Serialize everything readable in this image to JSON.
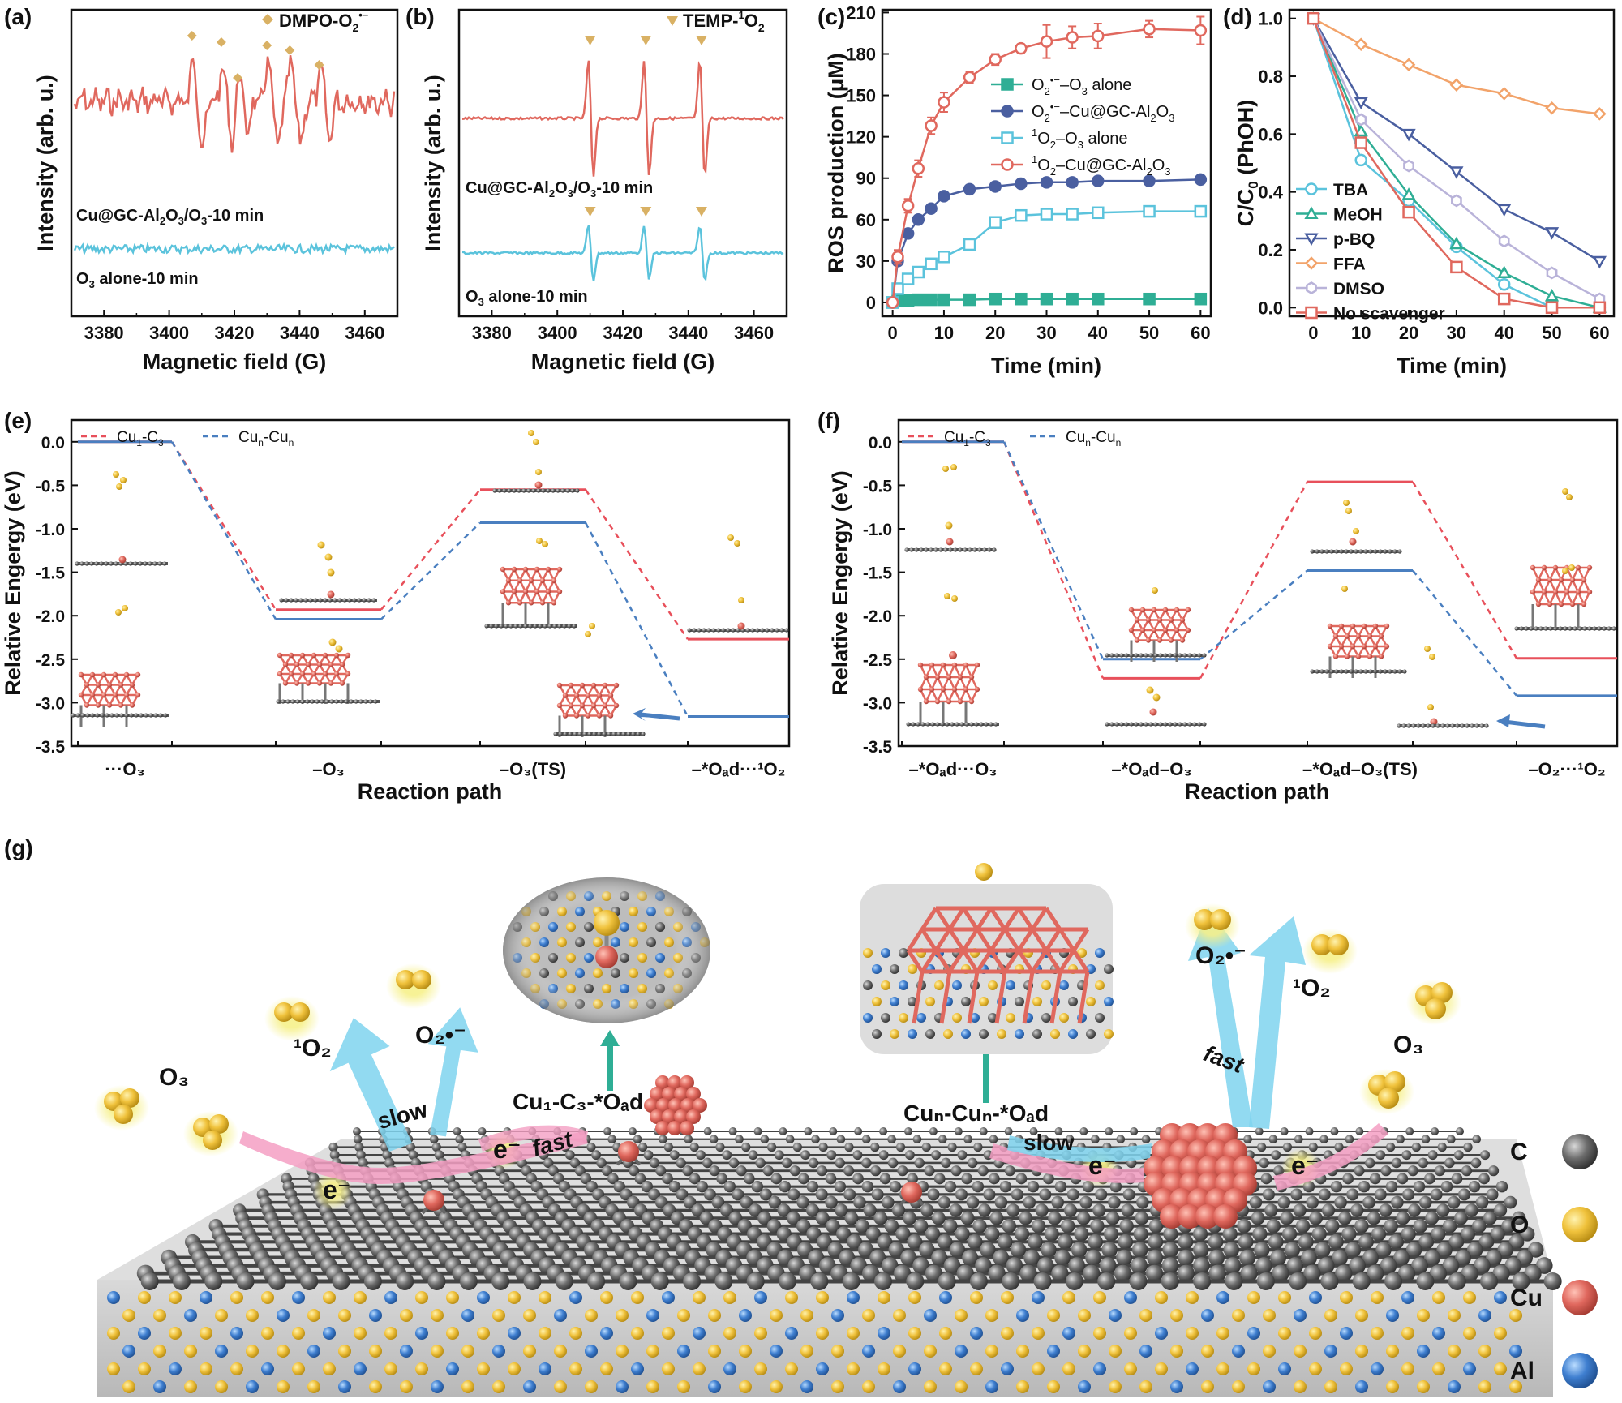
{
  "panel_labels": {
    "a": "(a)",
    "b": "(b)",
    "c": "(c)",
    "d": "(d)",
    "e": "(e)",
    "f": "(f)",
    "g": "(g)"
  },
  "colors": {
    "red": "#e0685e",
    "cyan": "#5bc3dc",
    "navy": "#4a5fa0",
    "teal": "#2fae95",
    "orange": "#f2a36a",
    "lavender": "#b9b3d9",
    "marker_tan": "#d9b164",
    "dft_red": "#e8505b",
    "dft_blue": "#4a7fc0",
    "cu": "#e0685e",
    "o": "#f0c23c",
    "c": "#6d6d6d",
    "al": "#3f7fd0",
    "glow": "#7fd3ef",
    "pink": "#f49fc3"
  },
  "chart_data": [
    {
      "id": "a",
      "type": "line",
      "title": "",
      "xlabel": "Magnetic field (G)",
      "ylabel": "Intensity (arb. u.)",
      "xlim": [
        3370,
        3470
      ],
      "xticks": [
        3380,
        3400,
        3420,
        3440,
        3460
      ],
      "legend": "DMPO-O₂•⁻",
      "series": [
        {
          "name": "Cu@GC-Al₂O₃/O₃-10 min",
          "color": "#e0685e",
          "note": "EPR spectrum with DMPO-O2 adduct peaks"
        },
        {
          "name": "O₃ alone-10 min",
          "color": "#5bc3dc",
          "note": "flat noise baseline"
        }
      ],
      "marker_positions_G": [
        3407,
        3416,
        3421,
        3430,
        3437,
        3446
      ]
    },
    {
      "id": "b",
      "type": "line",
      "title": "",
      "xlabel": "Magnetic field (G)",
      "ylabel": "Intensity (arb. u.)",
      "xlim": [
        3370,
        3470
      ],
      "xticks": [
        3380,
        3400,
        3420,
        3440,
        3460
      ],
      "legend": "TEMP-¹O₂",
      "series": [
        {
          "name": "Cu@GC-Al₂O₃/O₃-10 min",
          "color": "#e0685e",
          "note": "1:1:1 triplet, large"
        },
        {
          "name": "O₃ alone-10 min",
          "color": "#5bc3dc",
          "note": "1:1:1 triplet, small"
        }
      ],
      "peak_positions_G": [
        3410,
        3427,
        3444
      ]
    },
    {
      "id": "c",
      "type": "line",
      "title": "",
      "xlabel": "Time (min)",
      "ylabel": "ROS production (μM)",
      "xlim": [
        -2,
        62
      ],
      "ylim": [
        -10,
        212
      ],
      "xticks": [
        0,
        10,
        20,
        30,
        40,
        50,
        60
      ],
      "yticks": [
        0,
        30,
        60,
        90,
        120,
        150,
        180,
        210
      ],
      "x": [
        0,
        1,
        3,
        5,
        7.5,
        10,
        15,
        20,
        25,
        30,
        35,
        40,
        50,
        60
      ],
      "series": [
        {
          "name": "O₂•⁻–O₃ alone",
          "color": "#2fae95",
          "marker": "filled-square",
          "values": [
            0,
            1,
            1.5,
            2,
            2,
            2,
            2,
            2.5,
            2.5,
            2.5,
            2.5,
            2.5,
            2.5,
            2.5
          ]
        },
        {
          "name": "O₂•⁻–Cu@GC-Al₂O₃",
          "color": "#4a5fa0",
          "marker": "filled-circle",
          "values": [
            0,
            30,
            50,
            60,
            68,
            77,
            82,
            84,
            86,
            87,
            87,
            88,
            88,
            89
          ]
        },
        {
          "name": "¹O₂–O₃ alone",
          "color": "#5bc3dc",
          "marker": "open-square",
          "values": [
            0,
            10,
            17,
            22,
            28,
            33,
            42,
            58,
            63,
            64,
            64,
            65,
            66,
            66
          ]
        },
        {
          "name": "¹O₂–Cu@GC-Al₂O₃",
          "color": "#e0685e",
          "marker": "open-circle",
          "values": [
            0,
            33,
            70,
            97,
            128,
            145,
            163,
            176,
            184,
            189,
            192,
            193,
            198,
            197
          ],
          "errors": [
            0,
            5,
            5,
            6,
            6,
            7,
            4,
            4,
            3,
            12,
            8,
            9,
            6,
            10
          ]
        }
      ]
    },
    {
      "id": "d",
      "type": "line",
      "title": "",
      "xlabel": "Time (min)",
      "ylabel": "C/C₀ (PhOH)",
      "xlim": [
        -5,
        63
      ],
      "ylim": [
        -0.03,
        1.03
      ],
      "xticks": [
        0,
        10,
        20,
        30,
        40,
        50,
        60
      ],
      "yticks": [
        0.0,
        0.2,
        0.4,
        0.6,
        0.8,
        1.0
      ],
      "x": [
        0,
        10,
        20,
        30,
        40,
        50,
        60
      ],
      "series": [
        {
          "name": "TBA",
          "color": "#5bc3dc",
          "marker": "open-circle",
          "values": [
            1.0,
            0.51,
            0.37,
            0.21,
            0.08,
            0.0,
            0.0
          ]
        },
        {
          "name": "MeOH",
          "color": "#2fae95",
          "marker": "open-triangle",
          "values": [
            1.0,
            0.61,
            0.39,
            0.22,
            0.12,
            0.04,
            0.0
          ]
        },
        {
          "name": "p-BQ",
          "color": "#4a5fa0",
          "marker": "open-down-triangle",
          "values": [
            1.0,
            0.71,
            0.6,
            0.47,
            0.34,
            0.26,
            0.16
          ]
        },
        {
          "name": "FFA",
          "color": "#f2a36a",
          "marker": "open-diamond",
          "values": [
            1.0,
            0.91,
            0.84,
            0.77,
            0.74,
            0.69,
            0.67
          ]
        },
        {
          "name": "DMSO",
          "color": "#b9b3d9",
          "marker": "open-hexagon",
          "values": [
            1.0,
            0.65,
            0.49,
            0.37,
            0.23,
            0.12,
            0.03
          ]
        },
        {
          "name": "No scavenger",
          "color": "#e0685e",
          "marker": "open-square",
          "values": [
            1.0,
            0.57,
            0.33,
            0.14,
            0.03,
            0.0,
            0.0
          ]
        }
      ]
    },
    {
      "id": "e",
      "type": "line",
      "subtype": "energy-profile",
      "xlabel": "Reaction path",
      "ylabel": "Relative Engergy (eV)",
      "ylim": [
        -3.5,
        0.25
      ],
      "yticks": [
        0.0,
        -0.5,
        -1.0,
        -1.5,
        -2.0,
        -2.5,
        -3.0,
        -3.5
      ],
      "states": [
        "···O₃",
        "–O₃",
        "–O₃(TS)",
        "–*Oₐd···¹O₂"
      ],
      "series": [
        {
          "name": "Cu₁-C₃",
          "color": "#e8505b",
          "values": [
            0.0,
            -1.93,
            -0.55,
            -2.27
          ]
        },
        {
          "name": "Cuₙ-Cuₙ",
          "color": "#4a7fc0",
          "values": [
            0.0,
            -2.04,
            -0.93,
            -3.16
          ]
        }
      ]
    },
    {
      "id": "f",
      "type": "line",
      "subtype": "energy-profile",
      "xlabel": "Reaction path",
      "ylabel": "Relative Engergy (eV)",
      "ylim": [
        -3.5,
        0.25
      ],
      "yticks": [
        0.0,
        -0.5,
        -1.0,
        -1.5,
        -2.0,
        -2.5,
        -3.0,
        -3.5
      ],
      "states": [
        "–*Oₐd···O₃",
        "–*Oₐd–O₃",
        "–*Oₐd–O₃(TS)",
        "–O₂···¹O₂"
      ],
      "series": [
        {
          "name": "Cu₁-C₃",
          "color": "#e8505b",
          "values": [
            0.0,
            -2.72,
            -0.46,
            -2.49
          ]
        },
        {
          "name": "Cuₙ-Cuₙ",
          "color": "#4a7fc0",
          "values": [
            0.0,
            -2.5,
            -1.48,
            -2.92
          ]
        }
      ]
    }
  ],
  "panel_a": {
    "legend_text": "DMPO-O",
    "legend_sub": "2",
    "legend_sup": "•−",
    "label_top": "Cu@GC-Al",
    "label_top_mid": "O",
    "label_top_end": "/O",
    "label_top_tail": "-10 min",
    "label_bottom": "O",
    "label_bottom_sub": "3",
    "label_bottom_tail": " alone-10 min"
  },
  "panel_b": {
    "legend_text": "TEMP-",
    "legend_sup": "1",
    "legend_tail": "O",
    "legend_sub": "2"
  },
  "panel_c": {
    "legend": [
      {
        "pre": "O",
        "sub": "2",
        "sup": "•−",
        "tail": "–O",
        "tail_sub": "3",
        "rest": " alone"
      },
      {
        "pre": "O",
        "sub": "2",
        "sup": "•−",
        "tail": "–Cu@GC-Al",
        "tail_sub": "2",
        "rest": "O",
        "rest_sub": "3"
      },
      {
        "sup0": "1",
        "pre": "O",
        "sub": "2",
        "tail": "–O",
        "tail_sub": "3",
        "rest": " alone"
      },
      {
        "sup0": "1",
        "pre": "O",
        "sub": "2",
        "tail": "–Cu@GC-Al",
        "tail_sub": "2",
        "rest": "O",
        "rest_sub": "3"
      }
    ]
  },
  "panel_d": {
    "legend": [
      "TBA",
      "MeOH",
      "p-BQ",
      "FFA",
      "DMSO",
      "No scavenger"
    ]
  },
  "panel_e": {
    "legend": [
      {
        "pre": "Cu",
        "sub": "1",
        "tail": "-C",
        "tail_sub": "3"
      },
      {
        "pre": "Cu",
        "sub": "n",
        "tail": "-Cu",
        "tail_sub": "n"
      }
    ]
  },
  "panel_g": {
    "labels": {
      "o2_left": "O₂•⁻",
      "singlet_left": "¹O₂",
      "o3_left": "O₃",
      "slow_left": "slow",
      "fast_left": "fast",
      "e_left1": "e⁻",
      "e_left2": "e⁻",
      "site_left": "Cu₁-C₃-*Oₐd",
      "site_right": "Cuₙ-Cuₙ-*Oₐd",
      "slow_right": "slow",
      "fast_right": "fast",
      "o2_right": "O₂•⁻",
      "singlet_right": "¹O₂",
      "o3_right": "O₃",
      "e_right1": "e⁻",
      "e_right2": "e⁻"
    },
    "legend": [
      {
        "symbol": "C",
        "color": "#6d6d6d"
      },
      {
        "symbol": "O",
        "color": "#f0c23c"
      },
      {
        "symbol": "Cu",
        "color": "#e0685e"
      },
      {
        "symbol": "Al",
        "color": "#3f7fd0"
      }
    ]
  }
}
